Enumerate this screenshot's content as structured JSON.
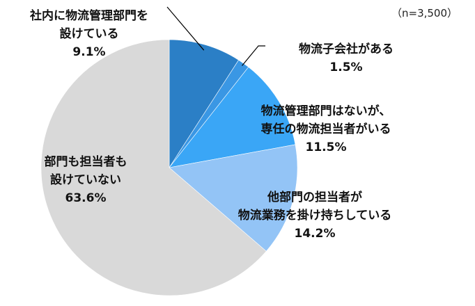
{
  "chart_data": {
    "type": "pie",
    "note": "（n=3,500）",
    "slices": [
      {
        "label_lines": [
          "社内に物流管理部門を",
          "設けている"
        ],
        "value": 9.1,
        "value_label": "9.1%",
        "color": "#2b7fc6"
      },
      {
        "label_lines": [
          "物流子会社がある"
        ],
        "value": 1.5,
        "value_label": "1.5%",
        "color": "#3a97e4"
      },
      {
        "label_lines": [
          "物流管理部門はないが、",
          "専任の物流担当者がいる"
        ],
        "value": 11.5,
        "value_label": "11.5%",
        "color": "#3aa6f6"
      },
      {
        "label_lines": [
          "他部門の担当者が",
          "物流業務を掛け持ちしている"
        ],
        "value": 14.2,
        "value_label": "14.2%",
        "color": "#93c4f6"
      },
      {
        "label_lines": [
          "部門も担当者も",
          "設けていない"
        ],
        "value": 63.6,
        "value_label": "63.6%",
        "color": "#d9d9d9"
      }
    ],
    "start": "top",
    "direction": "clockwise"
  }
}
